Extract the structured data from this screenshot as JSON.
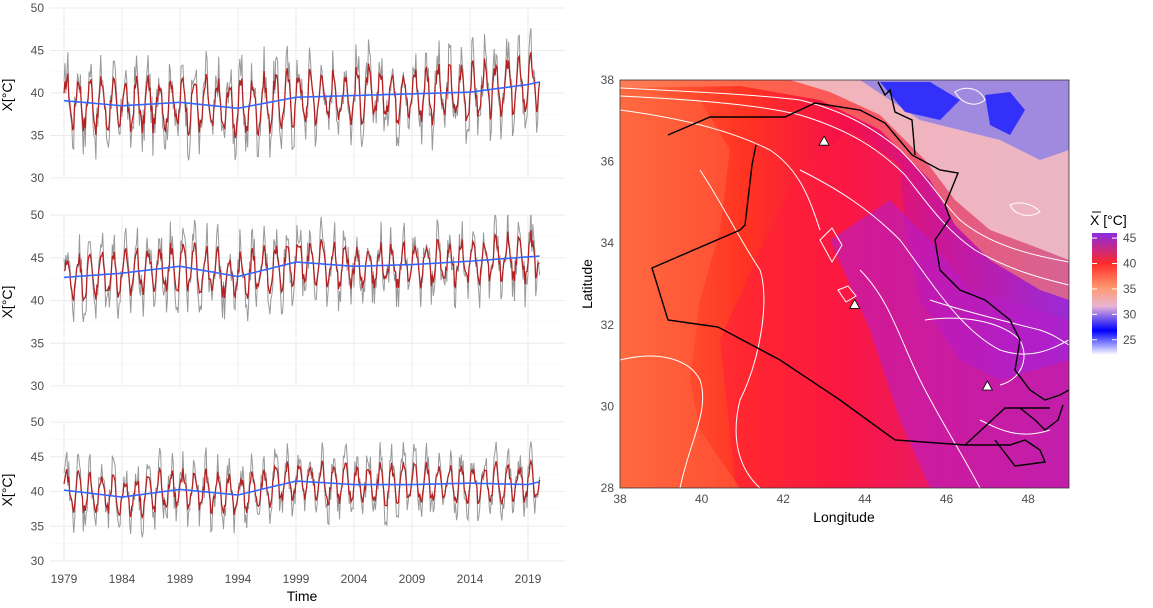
{
  "colors": {
    "raw_series": "#999999",
    "smooth_series": "#b22222",
    "trend_line": "#3366ff",
    "gridline": "#ebebeb",
    "map_low": "#0000ff",
    "map_mid": "#ff2a2a",
    "map_high": "#8a2be2",
    "contour": "#ffffff",
    "border": "#000000"
  },
  "chart_data": [
    {
      "type": "line",
      "panel": "top",
      "ylabel": "X[°C]",
      "ylim": [
        30,
        50
      ],
      "yticks": [
        30,
        35,
        40,
        45,
        50
      ],
      "xlim": [
        1979,
        2020
      ],
      "trend_x": [
        1979,
        1984,
        1989,
        1994,
        1999,
        2004,
        2009,
        2014,
        2019,
        2020
      ],
      "trend_values": [
        39.1,
        38.5,
        38.9,
        38.2,
        39.5,
        39.7,
        39.9,
        40.1,
        41.0,
        41.3
      ],
      "series": [
        {
          "name": "raw",
          "mean": 39.6,
          "amplitude": 6.5
        },
        {
          "name": "smoothed",
          "mean": 39.6,
          "amplitude": 4.5
        }
      ]
    },
    {
      "type": "line",
      "panel": "middle",
      "ylabel": "X[°C]",
      "ylim": [
        30,
        50
      ],
      "yticks": [
        30,
        35,
        40,
        45,
        50
      ],
      "xlim": [
        1979,
        2020
      ],
      "trend_x": [
        1979,
        1984,
        1989,
        1994,
        1999,
        2004,
        2009,
        2014,
        2019,
        2020
      ],
      "trend_values": [
        42.7,
        43.2,
        44.0,
        42.8,
        44.5,
        44.0,
        44.2,
        44.6,
        45.1,
        45.2
      ],
      "series": [
        {
          "name": "raw",
          "mean": 44.1,
          "amplitude": 5.8
        },
        {
          "name": "smoothed",
          "mean": 44.1,
          "amplitude": 3.8
        }
      ]
    },
    {
      "type": "line",
      "panel": "bottom",
      "ylabel": "X[°C]",
      "ylim": [
        30,
        50
      ],
      "yticks": [
        30,
        35,
        40,
        45,
        50
      ],
      "xlim": [
        1979,
        2020
      ],
      "xticks": [
        1979,
        1984,
        1989,
        1994,
        1999,
        2004,
        2009,
        2014,
        2019
      ],
      "xlabel": "Time",
      "trend_x": [
        1979,
        1984,
        1989,
        1994,
        1999,
        2004,
        2009,
        2014,
        2019,
        2020
      ],
      "trend_values": [
        40.2,
        39.2,
        40.3,
        39.5,
        41.5,
        41.0,
        41.0,
        41.2,
        41.0,
        41.4
      ],
      "series": [
        {
          "name": "raw",
          "mean": 40.8,
          "amplitude": 6.2
        },
        {
          "name": "smoothed",
          "mean": 40.8,
          "amplitude": 4.0
        }
      ]
    },
    {
      "type": "heatmap",
      "xlabel": "Longitude",
      "ylabel": "Latitude",
      "xlim": [
        38,
        49
      ],
      "ylim": [
        28,
        38
      ],
      "xticks": [
        38,
        40,
        42,
        44,
        46,
        48
      ],
      "yticks": [
        28,
        30,
        32,
        34,
        36,
        38
      ],
      "legend_title": "X [°C]",
      "legend_ticks": [
        45,
        40,
        35,
        30,
        25
      ],
      "legend_range": [
        22,
        46
      ],
      "stations": [
        {
          "lon": 43.0,
          "lat": 36.5
        },
        {
          "lon": 43.75,
          "lat": 32.5
        },
        {
          "lon": 47.0,
          "lat": 30.5
        }
      ]
    }
  ]
}
